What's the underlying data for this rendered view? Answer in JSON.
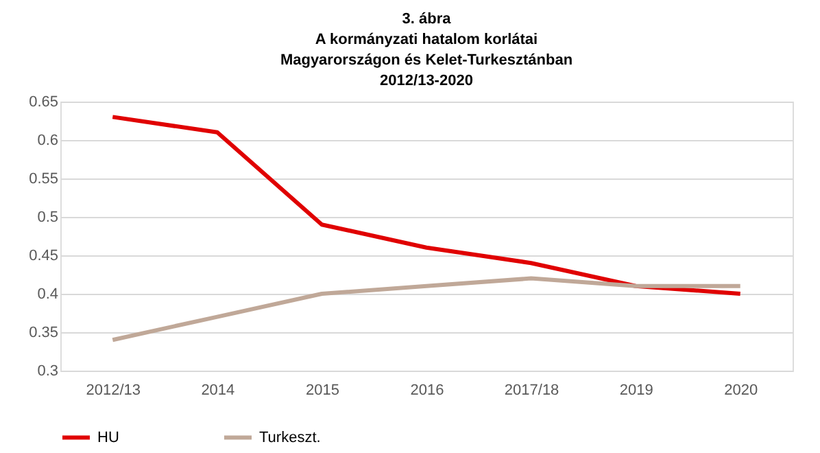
{
  "chart_data": {
    "type": "line",
    "title": "3. ábra\nA kormányzati  hatalom korlátai\nMagyarországon  és Kelet-Turkesztánban\n2012/13-2020",
    "categories": [
      "2012/13",
      "2014",
      "2015",
      "2016",
      "2017/18",
      "2019",
      "2020"
    ],
    "series": [
      {
        "name": "HU",
        "color": "#e00000",
        "values": [
          0.63,
          0.61,
          0.49,
          0.46,
          0.44,
          0.41,
          0.4
        ]
      },
      {
        "name": "Turkeszt.",
        "color": "#c0a898",
        "values": [
          0.34,
          0.37,
          0.4,
          0.41,
          0.42,
          0.41,
          0.41
        ]
      }
    ],
    "ylim": [
      0.3,
      0.65
    ],
    "yticks": [
      0.3,
      0.35,
      0.4,
      0.45,
      0.5,
      0.55,
      0.6,
      0.65
    ],
    "grid": "y",
    "legend": "bottom",
    "marker": "none",
    "line_style": "solid"
  }
}
